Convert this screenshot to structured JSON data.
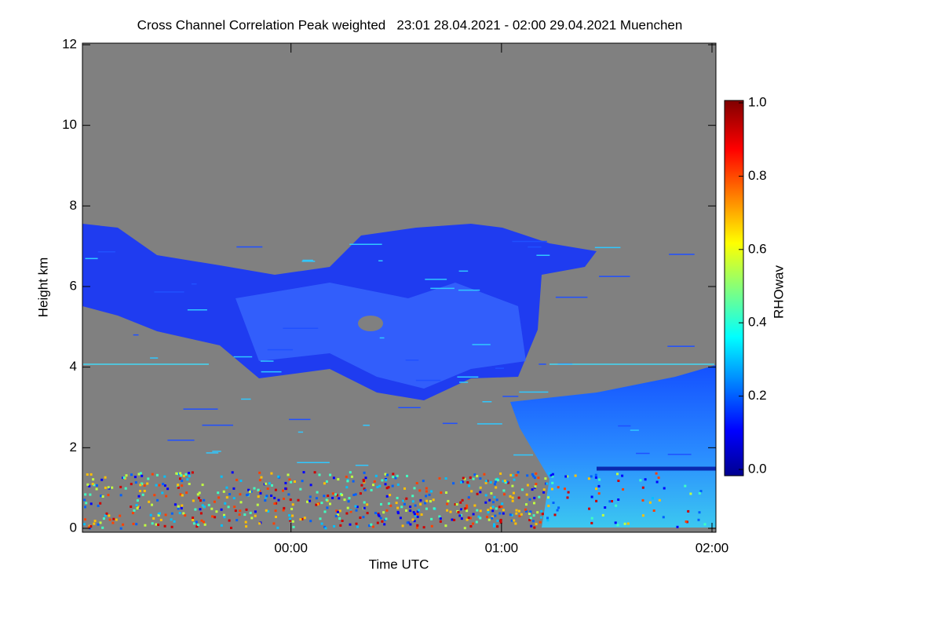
{
  "chart_data": {
    "type": "heatmap",
    "title": "Cross Channel Correlation Peak weighted   23:01 28.04.2021 - 02:00 29.04.2021 Muenchen",
    "xlabel": "Time UTC",
    "ylabel": "Height km",
    "xlim": [
      -0.9833,
      2
    ],
    "xticks": [
      {
        "value": 0,
        "label": "00:00"
      },
      {
        "value": 1,
        "label": "01:00"
      },
      {
        "value": 2,
        "label": "02:00"
      }
    ],
    "ylim": [
      0,
      12
    ],
    "yticks": [
      0,
      2,
      4,
      6,
      8,
      10,
      12
    ],
    "colorbar": {
      "label": "RHOwav",
      "colormap": "jet",
      "lim": [
        0,
        1
      ],
      "ticks": [
        {
          "value": 0,
          "label": "0.0"
        },
        {
          "value": 0.2,
          "label": "0.2"
        },
        {
          "value": 0.4,
          "label": "0.4"
        },
        {
          "value": 0.6,
          "label": "0.6"
        },
        {
          "value": 0.8,
          "label": "0.8"
        },
        {
          "value": 1,
          "label": "1.0"
        }
      ]
    }
  }
}
